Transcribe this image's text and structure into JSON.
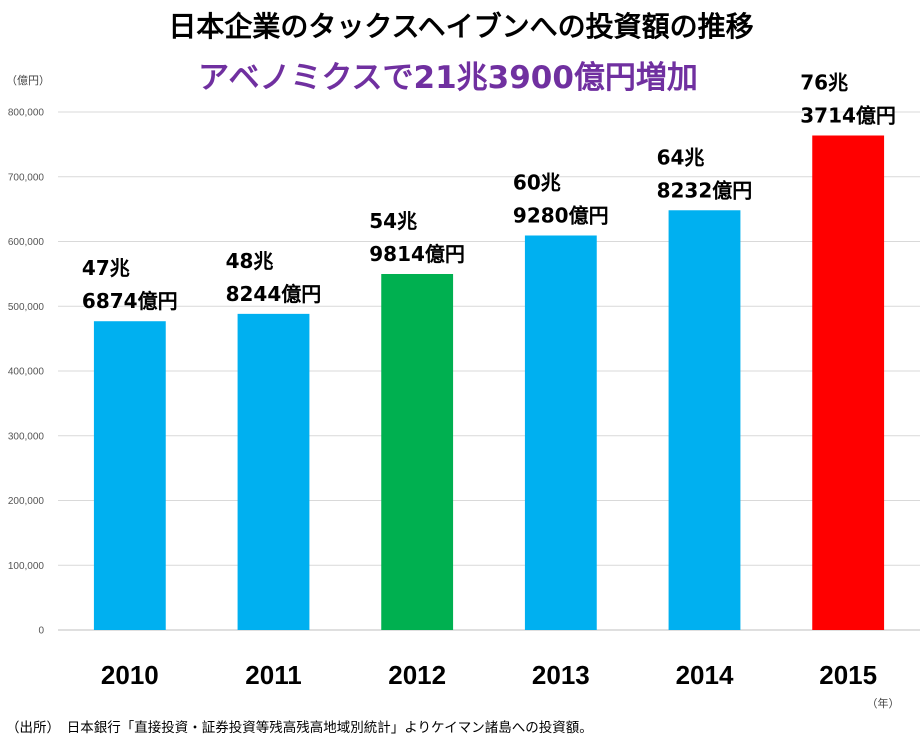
{
  "chart_data": {
    "type": "bar",
    "title": "日本企業のタックスヘイブンへの投資額の推移",
    "subtitle": "アベノミクスで21兆3900億円増加",
    "ylabel": "（億円）",
    "xunit": "（年）",
    "categories": [
      "2010",
      "2011",
      "2012",
      "2013",
      "2014",
      "2015"
    ],
    "values": [
      476874,
      488244,
      549814,
      609280,
      648232,
      763714
    ],
    "data_labels": [
      [
        "47兆",
        "6874億円"
      ],
      [
        "48兆",
        "8244億円"
      ],
      [
        "54兆",
        "9814億円"
      ],
      [
        "60兆",
        "9280億円"
      ],
      [
        "64兆",
        "8232億円"
      ],
      [
        "76兆",
        "3714億円"
      ]
    ],
    "bar_colors": [
      "#00b0f0",
      "#00b0f0",
      "#00b050",
      "#00b0f0",
      "#00b0f0",
      "#ff0000"
    ],
    "ylim": [
      0,
      800000
    ],
    "yticks": [
      0,
      100000,
      200000,
      300000,
      400000,
      500000,
      600000,
      700000,
      800000
    ],
    "ytick_labels": [
      "0",
      "100,000",
      "200,000",
      "300,000",
      "400,000",
      "500,000",
      "600,000",
      "700,000",
      "800,000"
    ],
    "grid": true,
    "legend": "none"
  },
  "colors": {
    "subtitle": "#7030a0",
    "grid": "#d9d9d9"
  },
  "source_text": "（出所）　日本銀行「直接投資・証券投資等残高残高地域別統計」よりケイマン諸島への投資額。"
}
